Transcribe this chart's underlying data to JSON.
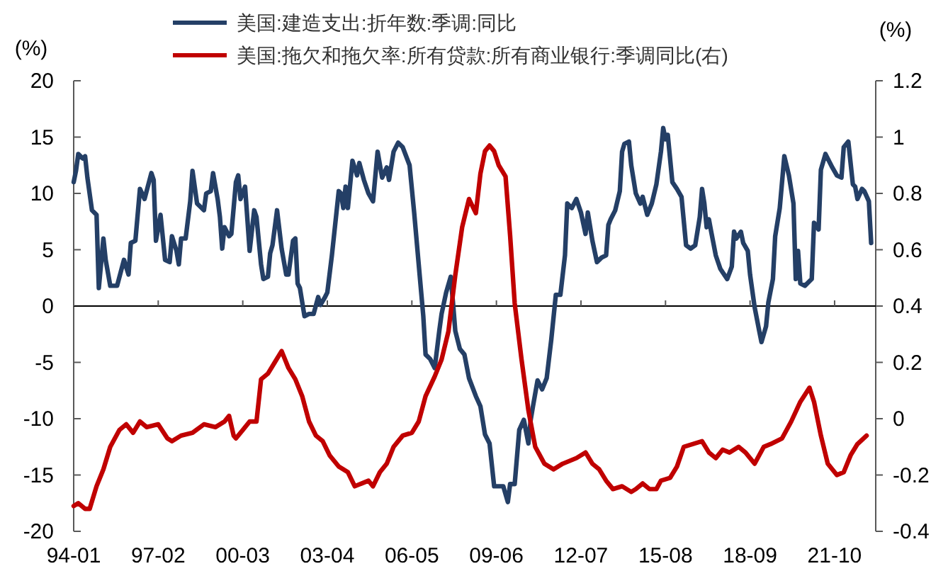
{
  "chart_data": {
    "type": "line",
    "legend": "top",
    "ylabel": "(%)",
    "y2label": "(%)",
    "xlim": [
      "1994-01",
      "2023-04"
    ],
    "xticks": [
      {
        "value": "1994-01",
        "label": "94-01"
      },
      {
        "value": "1997-02",
        "label": "97-02"
      },
      {
        "value": "2000-03",
        "label": "00-03"
      },
      {
        "value": "2003-04",
        "label": "03-04"
      },
      {
        "value": "2006-05",
        "label": "06-05"
      },
      {
        "value": "2009-06",
        "label": "09-06"
      },
      {
        "value": "2012-07",
        "label": "12-07"
      },
      {
        "value": "2015-08",
        "label": "15-08"
      },
      {
        "value": "2018-09",
        "label": "18-09"
      },
      {
        "value": "2021-10",
        "label": "21-10"
      }
    ],
    "ylim": [
      -20,
      20
    ],
    "yticks": [
      -20,
      -15,
      -10,
      -5,
      0,
      5,
      10,
      15,
      20
    ],
    "y2lim": [
      -0.4,
      1.2
    ],
    "y2ticks": [
      -0.4,
      -0.2,
      0,
      0.2,
      0.4,
      0.6,
      0.8,
      1,
      1.2
    ],
    "series": [
      {
        "name": "美国:建造支出:折年数:季调:同比",
        "color": "#243f66",
        "x": [
          "1994-01",
          "1994-02",
          "1994-03",
          "1994-05",
          "1994-06",
          "1994-07",
          "1994-09",
          "1994-11",
          "1994-12",
          "1995-02",
          "1995-03",
          "1995-05",
          "1995-08",
          "1995-11",
          "1996-01",
          "1996-02",
          "1996-04",
          "1996-06",
          "1996-08",
          "1996-11",
          "1996-12",
          "1997-01",
          "1997-03",
          "1997-05",
          "1997-07",
          "1997-08",
          "1997-10",
          "1997-11",
          "1997-12",
          "1998-02",
          "1998-04",
          "1998-05",
          "1998-07",
          "1998-10",
          "1998-11",
          "1999-01",
          "1999-02",
          "1999-04",
          "1999-05",
          "1999-06",
          "1999-07",
          "1999-09",
          "1999-10",
          "1999-12",
          "2000-01",
          "2000-02",
          "2000-04",
          "2000-06",
          "2000-08",
          "2000-09",
          "2000-11",
          "2000-12",
          "2001-02",
          "2001-03",
          "2001-04",
          "2001-06",
          "2001-08",
          "2001-10",
          "2001-11",
          "2002-01",
          "2002-02",
          "2002-03",
          "2002-04",
          "2002-06",
          "2002-08",
          "2002-10",
          "2002-12",
          "2003-01",
          "2003-03",
          "2003-04",
          "2003-06",
          "2003-08",
          "2003-09",
          "2003-10",
          "2003-11",
          "2003-12",
          "2004-01",
          "2004-03",
          "2004-05",
          "2004-06",
          "2004-08",
          "2004-10",
          "2004-12",
          "2005-02",
          "2005-04",
          "2005-06",
          "2005-07",
          "2005-09",
          "2005-11",
          "2006-01",
          "2006-04",
          "2006-06",
          "2006-08",
          "2006-10",
          "2006-11",
          "2007-01",
          "2007-03",
          "2007-05",
          "2007-06",
          "2007-08",
          "2007-10",
          "2007-11",
          "2007-12",
          "2008-02",
          "2008-04",
          "2008-06",
          "2008-09",
          "2008-11",
          "2009-01",
          "2009-03",
          "2009-05",
          "2009-07",
          "2009-09",
          "2009-11",
          "2009-12",
          "2010-02",
          "2010-04",
          "2010-06",
          "2010-08",
          "2010-09",
          "2010-10",
          "2010-12",
          "2011-02",
          "2011-04",
          "2011-06",
          "2011-08",
          "2011-10",
          "2011-12",
          "2012-01",
          "2012-03",
          "2012-05",
          "2012-07",
          "2012-09",
          "2012-10",
          "2012-12",
          "2013-02",
          "2013-04",
          "2013-06",
          "2013-07",
          "2013-08",
          "2013-10",
          "2013-12",
          "2014-01",
          "2014-02",
          "2014-04",
          "2014-05",
          "2014-07",
          "2014-09",
          "2014-10",
          "2014-12",
          "2015-02",
          "2015-04",
          "2015-06",
          "2015-07",
          "2015-08",
          "2015-09",
          "2015-11",
          "2016-01",
          "2016-03",
          "2016-05",
          "2016-07",
          "2016-09",
          "2016-11",
          "2016-12",
          "2017-01",
          "2017-02",
          "2017-03",
          "2017-04",
          "2017-06",
          "2017-08",
          "2017-11",
          "2018-01",
          "2018-02",
          "2018-03",
          "2018-05",
          "2018-06",
          "2018-08",
          "2018-09",
          "2018-11",
          "2019-01",
          "2019-02",
          "2019-04",
          "2019-05",
          "2019-07",
          "2019-08",
          "2019-10",
          "2019-12",
          "2020-02",
          "2020-04",
          "2020-05",
          "2020-06",
          "2020-07",
          "2020-09",
          "2020-12",
          "2021-01",
          "2021-03",
          "2021-04",
          "2021-06",
          "2021-09",
          "2021-11",
          "2022-01",
          "2022-02",
          "2022-04",
          "2022-06",
          "2022-07",
          "2022-08",
          "2022-10",
          "2022-11",
          "2023-01",
          "2023-02"
        ],
        "values": [
          11.0,
          12.0,
          13.5,
          13.1,
          13.3,
          11.4,
          8.5,
          8.1,
          1.6,
          6.0,
          4.1,
          1.8,
          1.8,
          4.1,
          2.8,
          5.6,
          5.8,
          10.4,
          9.5,
          11.8,
          11.2,
          5.8,
          8.1,
          4.1,
          3.9,
          6.2,
          4.9,
          3.7,
          6.0,
          6.0,
          9.3,
          12.0,
          9.1,
          8.5,
          10.0,
          10.2,
          11.8,
          9.5,
          7.9,
          5.1,
          7.0,
          6.2,
          6.4,
          11.0,
          11.6,
          9.5,
          10.6,
          4.9,
          8.5,
          7.9,
          3.7,
          2.4,
          2.6,
          4.7,
          5.4,
          8.5,
          5.1,
          2.8,
          2.8,
          5.8,
          6.0,
          2.0,
          1.6,
          -0.9,
          -0.7,
          -0.7,
          0.8,
          0.1,
          0.8,
          1.2,
          4.5,
          8.3,
          10.2,
          10.0,
          8.7,
          10.6,
          8.7,
          12.9,
          11.6,
          12.7,
          11.2,
          10.0,
          9.3,
          13.7,
          11.4,
          12.3,
          11.2,
          13.7,
          14.5,
          14.1,
          12.5,
          8.3,
          3.7,
          -0.9,
          -4.3,
          -4.7,
          -5.5,
          -2.2,
          -0.7,
          1.2,
          2.6,
          0.3,
          -2.2,
          -3.8,
          -4.3,
          -6.4,
          -8.0,
          -8.9,
          -11.4,
          -12.2,
          -16.0,
          -16.0,
          -16.0,
          -17.4,
          -15.8,
          -15.8,
          -11.0,
          -10.1,
          -12.2,
          -10.1,
          -8.9,
          -6.6,
          -7.4,
          -6.4,
          -3.0,
          1.0,
          1.0,
          4.5,
          9.1,
          8.7,
          9.5,
          8.3,
          6.4,
          8.3,
          5.8,
          3.9,
          4.3,
          4.5,
          7.2,
          7.7,
          8.5,
          10.2,
          13.7,
          14.4,
          14.6,
          12.5,
          10.0,
          9.1,
          9.7,
          8.1,
          9.1,
          10.8,
          13.7,
          15.8,
          14.8,
          15.2,
          11.0,
          10.4,
          9.7,
          5.4,
          5.1,
          5.4,
          7.9,
          10.4,
          9.1,
          7.0,
          7.7,
          6.6,
          4.5,
          3.3,
          2.4,
          3.5,
          6.6,
          6.0,
          6.6,
          5.6,
          4.9,
          2.8,
          -0.1,
          -2.2,
          -3.2,
          -1.8,
          0.3,
          2.4,
          6.2,
          8.7,
          13.3,
          11.6,
          9.1,
          2.4,
          4.9,
          2.0,
          1.8,
          2.4,
          7.4,
          6.8,
          12.1,
          13.5,
          12.3,
          11.6,
          11.4,
          14.1,
          14.6,
          10.8,
          10.6,
          9.5,
          10.4,
          10.2,
          9.3,
          5.6
        ]
      },
      {
        "name": "美国:拖欠和拖欠率:所有贷款:所有商业银行:季调同比(右)",
        "color": "#c00000",
        "axis": "y2",
        "x": [
          "1994-01",
          "1994-03",
          "1994-06",
          "1994-08",
          "1994-11",
          "1995-02",
          "1995-05",
          "1995-09",
          "1995-12",
          "1996-03",
          "1996-06",
          "1996-09",
          "1997-02",
          "1997-06",
          "1997-08",
          "1997-12",
          "1998-05",
          "1998-10",
          "1999-03",
          "1999-07",
          "1999-09",
          "1999-11",
          "1999-12",
          "2000-03",
          "2000-06",
          "2000-09",
          "2000-11",
          "2001-02",
          "2001-05",
          "2001-08",
          "2001-11",
          "2002-02",
          "2002-05",
          "2002-08",
          "2002-11",
          "2003-02",
          "2003-05",
          "2003-09",
          "2004-01",
          "2004-04",
          "2004-07",
          "2004-10",
          "2004-12",
          "2005-03",
          "2005-06",
          "2005-09",
          "2006-01",
          "2006-05",
          "2006-08",
          "2006-11",
          "2007-03",
          "2007-06",
          "2007-09",
          "2007-12",
          "2008-03",
          "2008-06",
          "2008-09",
          "2008-11",
          "2009-01",
          "2009-03",
          "2009-05",
          "2009-07",
          "2009-10",
          "2009-12",
          "2010-02",
          "2010-05",
          "2010-08",
          "2010-11",
          "2011-03",
          "2011-07",
          "2011-11",
          "2012-02",
          "2012-05",
          "2012-09",
          "2012-12",
          "2013-03",
          "2013-06",
          "2013-09",
          "2014-01",
          "2014-05",
          "2014-07",
          "2014-10",
          "2015-01",
          "2015-04",
          "2015-06",
          "2015-10",
          "2016-01",
          "2016-04",
          "2016-08",
          "2016-12",
          "2017-03",
          "2017-06",
          "2017-09",
          "2017-12",
          "2018-04",
          "2018-07",
          "2018-11",
          "2019-03",
          "2019-06",
          "2019-11",
          "2020-03",
          "2020-07",
          "2020-11",
          "2021-01",
          "2021-04",
          "2021-07",
          "2021-11",
          "2022-02",
          "2022-05",
          "2022-08",
          "2022-12"
        ],
        "values": [
          -0.31,
          -0.3,
          -0.32,
          -0.32,
          -0.24,
          -0.18,
          -0.1,
          -0.04,
          -0.02,
          -0.05,
          -0.01,
          -0.03,
          -0.02,
          -0.07,
          -0.08,
          -0.06,
          -0.05,
          -0.02,
          -0.03,
          -0.01,
          0.01,
          -0.06,
          -0.07,
          -0.04,
          -0.01,
          -0.01,
          0.14,
          0.16,
          0.2,
          0.24,
          0.18,
          0.14,
          0.08,
          -0.01,
          -0.06,
          -0.08,
          -0.13,
          -0.17,
          -0.19,
          -0.24,
          -0.23,
          -0.22,
          -0.24,
          -0.19,
          -0.16,
          -0.1,
          -0.06,
          -0.05,
          -0.01,
          0.08,
          0.15,
          0.21,
          0.31,
          0.51,
          0.68,
          0.78,
          0.73,
          0.87,
          0.95,
          0.97,
          0.95,
          0.9,
          0.86,
          0.65,
          0.41,
          0.21,
          0.03,
          -0.1,
          -0.16,
          -0.18,
          -0.16,
          -0.15,
          -0.14,
          -0.12,
          -0.16,
          -0.18,
          -0.22,
          -0.25,
          -0.24,
          -0.26,
          -0.25,
          -0.23,
          -0.25,
          -0.25,
          -0.22,
          -0.21,
          -0.17,
          -0.1,
          -0.09,
          -0.08,
          -0.12,
          -0.14,
          -0.11,
          -0.12,
          -0.1,
          -0.12,
          -0.16,
          -0.1,
          -0.09,
          -0.07,
          -0.01,
          0.06,
          0.11,
          0.06,
          -0.06,
          -0.16,
          -0.2,
          -0.19,
          -0.13,
          -0.09,
          -0.06
        ]
      }
    ]
  }
}
